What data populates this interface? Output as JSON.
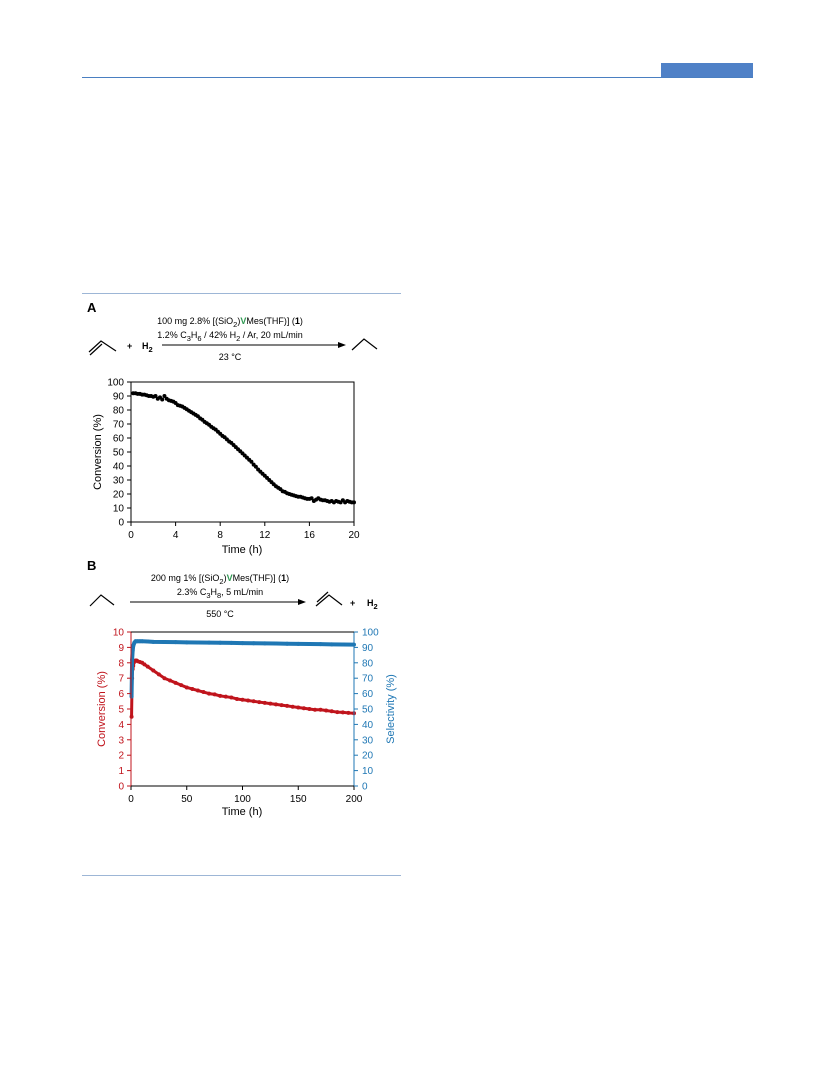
{
  "panel_a": {
    "label": "A",
    "conditions": {
      "line1_pre": "100 mg  2.8% [(SiO",
      "line1_sub": "2",
      "line1_mid": ")",
      "line1_v": "V",
      "line1_post": "Mes(THF)] (",
      "line1_num": "1",
      "line1_end": ")",
      "line2_a": "1.2% C",
      "line2_s1": "3",
      "line2_b": "H",
      "line2_s2": "6",
      "line2_c": " / 42% H",
      "line2_s3": "2",
      "line2_d": " / Ar, 20 mL/min",
      "temp": "23 °C"
    },
    "reactant_plus": "+",
    "reactant_h": "H",
    "reactant_h_sub": "2"
  },
  "panel_b": {
    "label": "B",
    "conditions": {
      "line1_pre": "200 mg  1% [(SiO",
      "line1_sub": "2",
      "line1_mid": ")",
      "line1_v": "V",
      "line1_post": "Mes(THF)] (",
      "line1_num": "1",
      "line1_end": ")",
      "line2_a": "2.3% C",
      "line2_s1": "3",
      "line2_b": "H",
      "line2_s2": "8",
      "line2_c": ", 5 mL/min",
      "temp": "550 °C"
    },
    "product_plus": "+",
    "product_h": "H",
    "product_h_sub": "2"
  },
  "colors": {
    "header": "#4f81c7",
    "conversion_b": "#c0141c",
    "selectivity_b": "#1f77b4",
    "v_green": "#2f9a52"
  },
  "chart_data": [
    {
      "type": "scatter",
      "xlabel": "Time (h)",
      "ylabel": "Conversion (%)",
      "xlim": [
        0,
        20
      ],
      "ylim": [
        0,
        100
      ],
      "xticks": [
        "0",
        "4",
        "8",
        "12",
        "16",
        "20"
      ],
      "yticks": [
        "0",
        "10",
        "20",
        "30",
        "40",
        "50",
        "60",
        "70",
        "80",
        "90",
        "100"
      ],
      "grid": false,
      "series": [
        {
          "x": [
            0.2,
            0.4,
            0.6,
            0.8,
            1.0,
            1.2,
            1.4,
            1.6,
            1.8,
            2.0,
            2.2,
            2.4,
            2.6,
            2.8,
            3.0,
            3.2,
            3.4,
            3.6,
            3.8,
            4.0,
            4.2,
            4.4,
            4.6,
            4.8,
            5.0,
            5.2,
            5.4,
            5.6,
            5.8,
            6.0,
            6.2,
            6.4,
            6.6,
            6.8,
            7.0,
            7.2,
            7.4,
            7.6,
            7.8,
            8.0,
            8.2,
            8.4,
            8.6,
            8.8,
            9.0,
            9.2,
            9.4,
            9.6,
            9.8,
            10.0,
            10.2,
            10.4,
            10.6,
            10.8,
            11.0,
            11.2,
            11.4,
            11.6,
            11.8,
            12.0,
            12.2,
            12.4,
            12.6,
            12.8,
            13.0,
            13.2,
            13.4,
            13.6,
            13.8,
            14.0,
            14.2,
            14.4,
            14.6,
            14.8,
            15.0,
            15.2,
            15.4,
            15.6,
            15.8,
            16.0,
            16.2,
            16.4,
            16.6,
            16.8,
            17.0,
            17.2,
            17.4,
            17.6,
            17.8,
            18.0,
            18.2,
            18.4,
            18.6,
            18.8,
            19.0,
            19.2,
            19.4,
            19.6,
            19.8,
            20.0
          ],
          "y": [
            92,
            92,
            91.5,
            91.5,
            91,
            91,
            90.5,
            90,
            90,
            89.5,
            90,
            88,
            89,
            87.5,
            90,
            88,
            87,
            86.5,
            86,
            85,
            83.5,
            83,
            82.5,
            81.5,
            80.5,
            79.5,
            78.5,
            77.5,
            76.5,
            75.5,
            74,
            73,
            71.5,
            70.5,
            69.5,
            68,
            67,
            66,
            64.5,
            63,
            61.5,
            60.5,
            59,
            57.5,
            56.5,
            55,
            53.5,
            52,
            50.5,
            49,
            47.5,
            46,
            44.5,
            43,
            41,
            39.5,
            37.5,
            36,
            34.5,
            33,
            31.5,
            30,
            28.5,
            27,
            25.5,
            24.5,
            23.5,
            22,
            21.5,
            20.5,
            20,
            19.5,
            19,
            18.5,
            18,
            18,
            17.5,
            17,
            16.5,
            16.5,
            17,
            15,
            16,
            17,
            16,
            15.5,
            15.5,
            15,
            14.5,
            15,
            14,
            15,
            14.5,
            14,
            15.5,
            14,
            15,
            14.5,
            14,
            14
          ]
        }
      ]
    },
    {
      "type": "scatter",
      "xlabel": "Time (h)",
      "ylabel": "Conversion (%)",
      "y2label": "Selectivity (%)",
      "xlim": [
        0,
        200
      ],
      "ylim": [
        0,
        10
      ],
      "y2lim": [
        0,
        100
      ],
      "xticks": [
        "0",
        "50",
        "100",
        "150",
        "200"
      ],
      "yticks": [
        "0",
        "1",
        "2",
        "3",
        "4",
        "5",
        "6",
        "7",
        "8",
        "9",
        "10"
      ],
      "y2ticks": [
        "0",
        "10",
        "20",
        "30",
        "40",
        "50",
        "60",
        "70",
        "80",
        "90",
        "100"
      ],
      "grid": false,
      "series": [
        {
          "name": "Conversion",
          "axis": "left",
          "color": "#c0141c",
          "x": [
            0.5,
            1,
            1.5,
            2,
            2.5,
            3,
            4,
            5,
            6,
            8,
            10,
            12,
            15,
            20,
            25,
            30,
            35,
            40,
            45,
            50,
            55,
            60,
            65,
            70,
            75,
            80,
            85,
            90,
            95,
            100,
            105,
            110,
            115,
            120,
            125,
            130,
            135,
            140,
            145,
            150,
            155,
            160,
            165,
            170,
            175,
            180,
            185,
            190,
            195,
            200
          ],
          "y": [
            4.5,
            7.0,
            7.6,
            7.8,
            8.0,
            8.1,
            8.15,
            8.15,
            8.1,
            8.05,
            8.0,
            7.9,
            7.75,
            7.5,
            7.25,
            7.0,
            6.85,
            6.7,
            6.55,
            6.4,
            6.3,
            6.2,
            6.1,
            6.0,
            5.95,
            5.85,
            5.8,
            5.75,
            5.65,
            5.6,
            5.55,
            5.5,
            5.45,
            5.4,
            5.35,
            5.3,
            5.25,
            5.2,
            5.15,
            5.1,
            5.05,
            5.0,
            4.95,
            4.95,
            4.9,
            4.85,
            4.8,
            4.78,
            4.75,
            4.72
          ]
        },
        {
          "name": "Selectivity",
          "axis": "right",
          "color": "#1f77b4",
          "x": [
            0.5,
            1,
            1.5,
            2,
            3,
            4,
            6,
            8,
            10,
            15,
            20,
            30,
            40,
            50,
            60,
            70,
            80,
            90,
            100,
            110,
            120,
            130,
            140,
            150,
            160,
            170,
            180,
            190,
            200
          ],
          "y": [
            58,
            82,
            88,
            91,
            93,
            94,
            94,
            94,
            94,
            93.8,
            93.6,
            93.5,
            93.4,
            93.3,
            93.2,
            93.1,
            93,
            92.9,
            92.8,
            92.7,
            92.6,
            92.5,
            92.4,
            92.3,
            92.2,
            92.1,
            92,
            91.9,
            91.8
          ]
        }
      ]
    }
  ]
}
